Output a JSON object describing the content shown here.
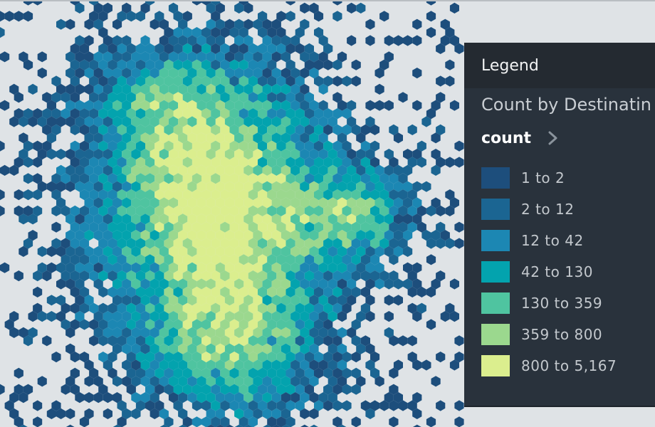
{
  "map": {
    "colors": [
      "#1d4e7c",
      "#1b6592",
      "#1c87b3",
      "#03a3ae",
      "#4fc4a0",
      "#9bd88e",
      "#dbee8e"
    ],
    "background": "#dfe3e6"
  },
  "legend": {
    "title": "Legend",
    "layer_name": "Count by Destinatin",
    "field": "count",
    "field_icon": "chevron-right-icon",
    "items": [
      {
        "label": "1 to 2",
        "color": "#1d4e7c"
      },
      {
        "label": "2 to 12",
        "color": "#1b6592"
      },
      {
        "label": "12 to 42",
        "color": "#1c87b3"
      },
      {
        "label": "42 to 130",
        "color": "#03a3ae"
      },
      {
        "label": "130 to 359",
        "color": "#4fc4a0"
      },
      {
        "label": "359 to 800",
        "color": "#9bd88e"
      },
      {
        "label": "800 to 5,167",
        "color": "#dbee8e"
      }
    ]
  }
}
